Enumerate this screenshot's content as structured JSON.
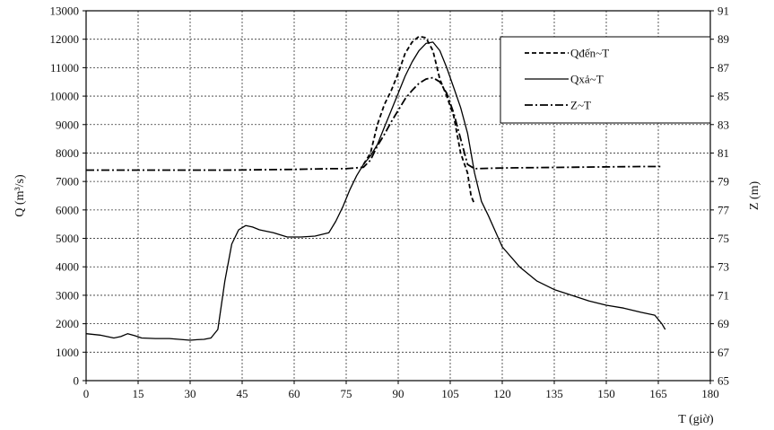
{
  "chart_data": {
    "type": "line",
    "xlabel": "T (giờ)",
    "ylabel_left": "Q (m³/s)",
    "ylabel_right": "Z (m)",
    "xlim": [
      0,
      180
    ],
    "ylim_left": [
      0,
      13000
    ],
    "ylim_right": [
      65,
      91
    ],
    "x_ticks": [
      "0",
      "15",
      "30",
      "45",
      "60",
      "75",
      "90",
      "105",
      "120",
      "135",
      "150",
      "165",
      "180"
    ],
    "y_left_ticks": [
      "0",
      "1000",
      "2000",
      "3000",
      "4000",
      "5000",
      "6000",
      "7000",
      "8000",
      "9000",
      "10000",
      "11000",
      "12000",
      "13000"
    ],
    "y_right_ticks": [
      "65",
      "67",
      "69",
      "71",
      "73",
      "75",
      "77",
      "79",
      "81",
      "83",
      "85",
      "87",
      "89",
      "91"
    ],
    "grid": true,
    "legend_position": "top-right",
    "series": [
      {
        "name": "Qđến~T",
        "axis": "left",
        "style": "dashed",
        "x": [
          80,
          82,
          84,
          86,
          88,
          90,
          92,
          94,
          96,
          98,
          100,
          102,
          104,
          106,
          108,
          110,
          111,
          112
        ],
        "y": [
          7600,
          8000,
          9000,
          9700,
          10200,
          10800,
          11500,
          11900,
          12100,
          12050,
          11600,
          10600,
          10000,
          9300,
          8000,
          7300,
          6500,
          6200
        ]
      },
      {
        "name": "Qxả~T",
        "axis": "left",
        "style": "solid",
        "x": [
          0,
          4,
          8,
          10,
          12,
          14,
          16,
          20,
          24,
          28,
          30,
          32,
          34,
          36,
          38,
          40,
          42,
          44,
          46,
          48,
          50,
          54,
          58,
          62,
          66,
          70,
          72,
          74,
          76,
          78,
          80,
          82,
          84,
          86,
          88,
          90,
          92,
          94,
          96,
          98,
          100,
          102,
          104,
          106,
          108,
          110,
          112,
          114,
          116,
          120,
          125,
          130,
          135,
          140,
          145,
          150,
          155,
          160,
          164,
          166,
          167
        ],
        "y": [
          1650,
          1600,
          1500,
          1550,
          1650,
          1580,
          1500,
          1480,
          1480,
          1440,
          1420,
          1440,
          1450,
          1500,
          1800,
          3500,
          4800,
          5300,
          5450,
          5400,
          5300,
          5200,
          5050,
          5050,
          5080,
          5200,
          5600,
          6100,
          6700,
          7200,
          7600,
          7900,
          8300,
          8900,
          9500,
          10100,
          10700,
          11200,
          11600,
          11850,
          11900,
          11600,
          11000,
          10300,
          9600,
          8700,
          7300,
          6300,
          5800,
          4700,
          4000,
          3500,
          3200,
          3000,
          2800,
          2650,
          2550,
          2400,
          2300,
          2000,
          1800
        ]
      },
      {
        "name": "Z~T",
        "axis": "right",
        "style": "dash-dot",
        "x": [
          0,
          20,
          40,
          60,
          70,
          75,
          80,
          82,
          84,
          86,
          88,
          90,
          92,
          94,
          96,
          98,
          100,
          102,
          104,
          106,
          108,
          110,
          112,
          120,
          140,
          160,
          166
        ],
        "y": [
          79.8,
          79.8,
          79.8,
          79.85,
          79.9,
          79.9,
          80.0,
          80.5,
          81.5,
          82.3,
          83.2,
          84.0,
          84.8,
          85.4,
          85.9,
          86.2,
          86.3,
          86.0,
          85.2,
          83.8,
          82.0,
          80.2,
          79.9,
          79.95,
          80.0,
          80.05,
          80.05
        ]
      }
    ]
  },
  "legend": {
    "items": [
      {
        "label": "Qđến~T"
      },
      {
        "label": "Qxả~T"
      },
      {
        "label": "Z~T"
      }
    ]
  }
}
